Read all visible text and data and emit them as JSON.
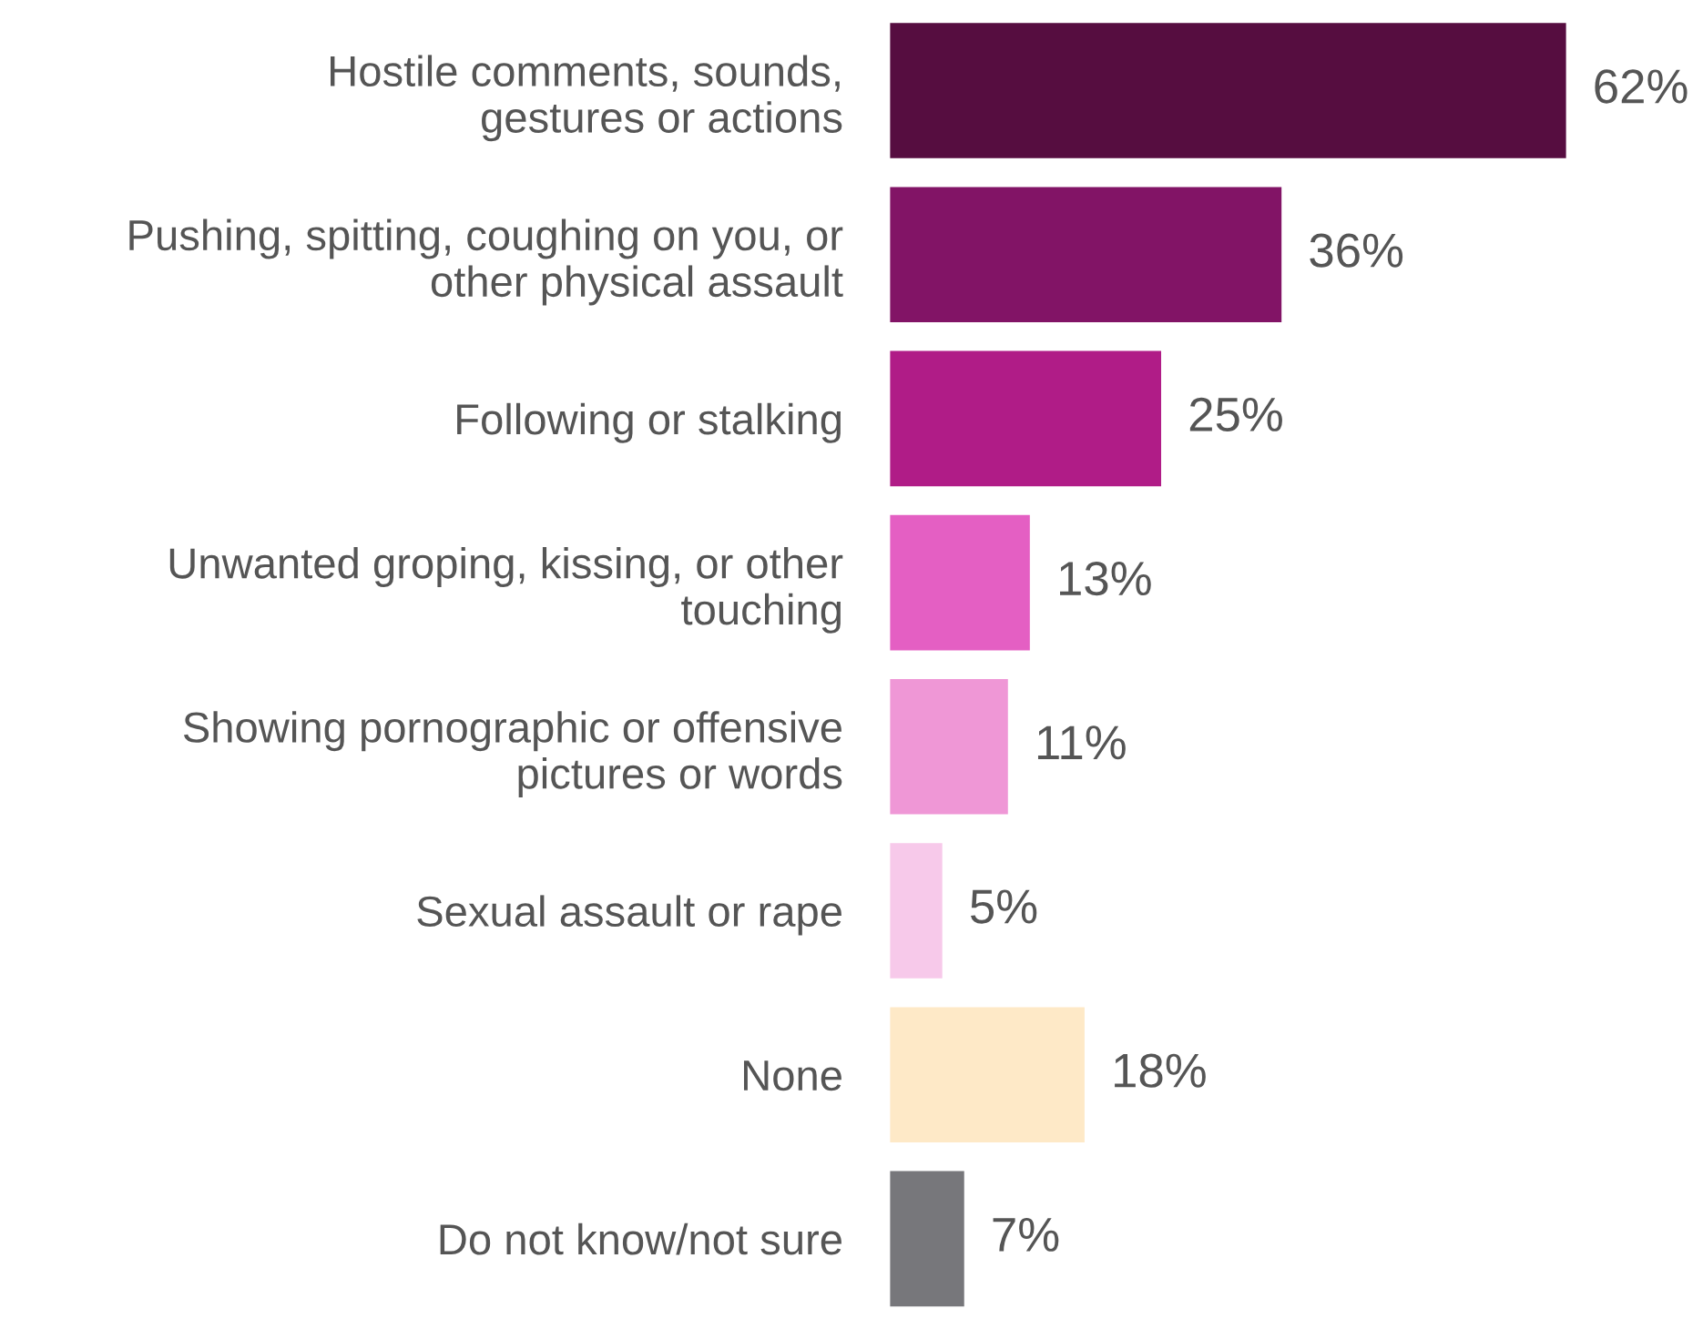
{
  "chart_data": {
    "type": "bar",
    "orientation": "horizontal",
    "categories": [
      "Hostile comments, sounds,\ngestures or actions",
      "Pushing, spitting, coughing on you, or\nother physical assault",
      "Following or stalking",
      "Unwanted groping, kissing, or other\ntouching",
      "Showing pornographic or offensive\npictures or words",
      "Sexual assault or rape",
      "None",
      "Do not know/not sure"
    ],
    "values": [
      62,
      36,
      25,
      13,
      11,
      5,
      18,
      7
    ],
    "colors": [
      "#560d40",
      "#821466",
      "#b01c87",
      "#e45fc3",
      "#ef97d6",
      "#f7c9ea",
      "#fee9c7",
      "#77777b"
    ],
    "value_labels": [
      "62%",
      "36%",
      "25%",
      "13%",
      "11%",
      "5%",
      "18%",
      "7%"
    ]
  }
}
